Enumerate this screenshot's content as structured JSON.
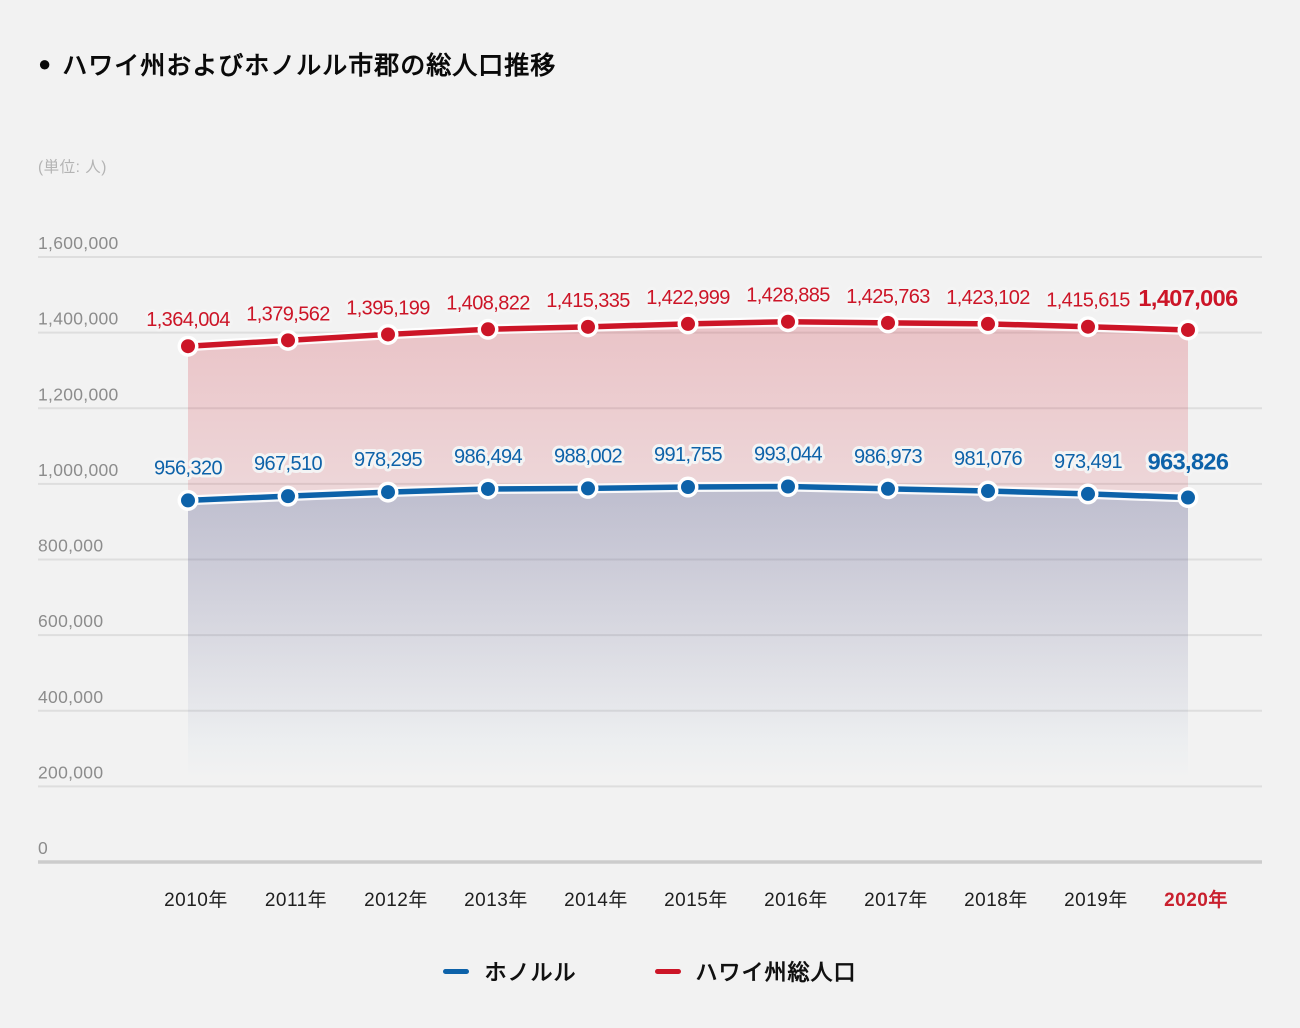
{
  "header": {
    "bullet": "●",
    "title": "ハワイ州およびホノルル市郡の総人口推移"
  },
  "unit_label": "(単位: 人)",
  "colors": {
    "background": "#f2f2f2",
    "honolulu": "#0d62a9",
    "hawaii": "#cc1527",
    "grid": "#dedede",
    "grid_zero": "#cccccc",
    "y_tick_text": "#8c8c8c",
    "x_tick_text": "#1f1f1f",
    "final_year": "#c9202e",
    "title_text": "#0a0a0a"
  },
  "legend": [
    {
      "label": "ホノルル",
      "color": "#0d62a9"
    },
    {
      "label": "ハワイ州総人口",
      "color": "#cc1527"
    }
  ],
  "chart_data": {
    "type": "line",
    "categories": [
      "2010年",
      "2011年",
      "2012年",
      "2013年",
      "2014年",
      "2015年",
      "2016年",
      "2017年",
      "2018年",
      "2019年",
      "2020年"
    ],
    "series": [
      {
        "name": "ホノルル",
        "color": "#0d62a9",
        "values": [
          956320,
          967510,
          978295,
          986494,
          988002,
          991755,
          993044,
          986973,
          981076,
          973491,
          963826
        ]
      },
      {
        "name": "ハワイ州総人口",
        "color": "#cc1527",
        "values": [
          1364004,
          1379562,
          1395199,
          1408822,
          1415335,
          1422999,
          1428885,
          1425763,
          1423102,
          1415615,
          1407006
        ]
      }
    ],
    "title": "ハワイ州およびホノルル市郡の総人口推移",
    "xlabel": "",
    "ylabel": "(単位: 人)",
    "ylim": [
      0,
      1600000
    ],
    "ytick_step": 200000,
    "grid": true,
    "legend_position": "bottom",
    "highlight_last_category": true
  }
}
